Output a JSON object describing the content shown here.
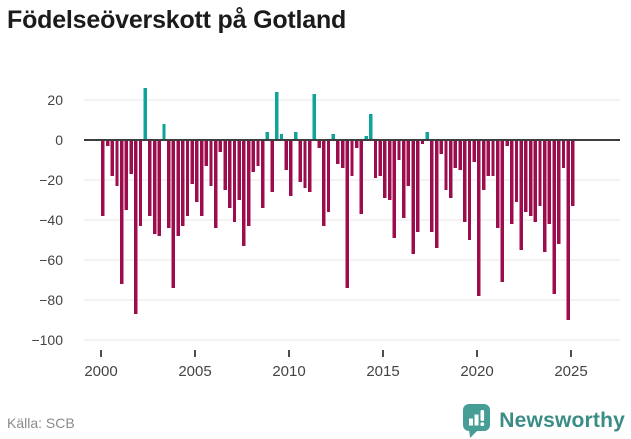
{
  "title": "Födelseöverskott på Gotland",
  "footer": {
    "source_label": "Källa: SCB"
  },
  "branding": {
    "logo_text": "Newsworthy",
    "logo_color": "#469d96",
    "text_color": "#3b8c86"
  },
  "chart_data": {
    "type": "bar",
    "title": "Födelseöverskott på Gotland",
    "frequency": "quarterly",
    "start_period": "2000-Q1",
    "end_period": "2025-Q1",
    "x_tick_labels": [
      "2000",
      "2005",
      "2010",
      "2015",
      "2020",
      "2025"
    ],
    "x_tick_years": [
      2000,
      2005,
      2010,
      2015,
      2020,
      2025
    ],
    "y_tick_values": [
      20,
      0,
      -20,
      -40,
      -60,
      -80,
      -100
    ],
    "y_tick_labels": [
      "20",
      "0",
      "−20",
      "−40",
      "−60",
      "−80",
      "−100"
    ],
    "ylim": [
      -100,
      28
    ],
    "grid": true,
    "legend": "none",
    "positive_color": "#0fa39a",
    "negative_color": "#9d0c4d",
    "zero_line_color": "#3d3d3d",
    "grid_color": "#e7e7e7",
    "axis_text_color": "#444444",
    "values": [
      -38,
      -3,
      -18,
      -23,
      -72,
      -35,
      -17,
      -87,
      -43,
      26,
      -38,
      -47,
      -48,
      8,
      -44,
      -74,
      -48,
      -43,
      -38,
      -22,
      -31,
      -38,
      -13,
      -23,
      -44,
      -6,
      -25,
      -34,
      -41,
      -30,
      -53,
      -43,
      -16,
      -13,
      -34,
      4,
      -26,
      24,
      3,
      -15,
      -28,
      4,
      -21,
      -24,
      -26,
      23,
      -4,
      -43,
      -36,
      3,
      -12,
      -14,
      -74,
      -18,
      -4,
      -37,
      2,
      13,
      -19,
      -18,
      -29,
      -30,
      -49,
      -10,
      -39,
      -23,
      -57,
      -46,
      -2,
      4,
      -46,
      -54,
      -7,
      -25,
      -29,
      -14,
      -15,
      -41,
      -50,
      -11,
      -78,
      -25,
      -18,
      -18,
      -44,
      -71,
      -3,
      -42,
      -31,
      -55,
      -36,
      -38,
      -41,
      -33,
      -56,
      -42,
      -77,
      -52,
      -14,
      -90,
      -33
    ]
  }
}
